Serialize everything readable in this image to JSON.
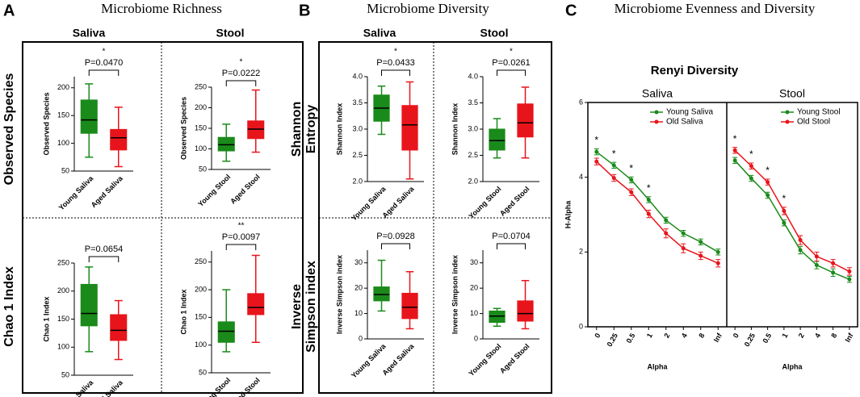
{
  "figure": {
    "panels": [
      {
        "letter": "A",
        "title": "Microbiome Richness",
        "columns": [
          "Saliva",
          "Stool"
        ],
        "rows": [
          [
            "Observed Species"
          ],
          [
            "Chao 1 Index"
          ]
        ]
      },
      {
        "letter": "B",
        "title": "Microbiome Diversity",
        "columns": [
          "Saliva",
          "Stool"
        ],
        "rows": [
          [
            "Shannon",
            "Entropy"
          ],
          [
            "Inverse",
            "Simpson index"
          ]
        ]
      },
      {
        "letter": "C",
        "title": "Microbiome Evenness and Diversity",
        "subtitle": "Renyi Diversity"
      }
    ]
  },
  "chart_data": [
    {
      "type": "box",
      "ylabel": "Observed Species",
      "categories": [
        "Young Saliva",
        "Aged Saliva"
      ],
      "ylim": [
        50,
        220
      ],
      "yticks": [
        50,
        100,
        150,
        200
      ],
      "p_label": "P=0.0470",
      "star": "*",
      "boxes": [
        {
          "color": "#1a8a1a",
          "min": 75,
          "q1": 118,
          "median": 142,
          "q3": 178,
          "max": 207
        },
        {
          "color": "#e8141b",
          "min": 58,
          "q1": 88,
          "median": 110,
          "q3": 125,
          "max": 165
        }
      ]
    },
    {
      "type": "box",
      "ylabel": "Observed Species",
      "categories": [
        "Young Stool",
        "Aged Stool"
      ],
      "ylim": [
        50,
        250
      ],
      "yticks": [
        50,
        100,
        150,
        200,
        250
      ],
      "p_label": "P=0.0222",
      "star": "*",
      "boxes": [
        {
          "color": "#1a8a1a",
          "min": 70,
          "q1": 95,
          "median": 110,
          "q3": 128,
          "max": 160
        },
        {
          "color": "#e8141b",
          "min": 92,
          "q1": 125,
          "median": 148,
          "q3": 168,
          "max": 243
        }
      ]
    },
    {
      "type": "box",
      "ylabel": "Chao 1 Index",
      "categories": [
        "Young Saliva",
        "Aged Saliva"
      ],
      "ylim": [
        50,
        250
      ],
      "yticks": [
        50,
        100,
        150,
        200,
        250
      ],
      "p_label": "P=0.0654",
      "boxes": [
        {
          "color": "#1a8a1a",
          "min": 92,
          "q1": 138,
          "median": 160,
          "q3": 212,
          "max": 243
        },
        {
          "color": "#e8141b",
          "min": 78,
          "q1": 112,
          "median": 130,
          "q3": 158,
          "max": 183
        }
      ]
    },
    {
      "type": "box",
      "ylabel": "Chao 1 Index",
      "categories": [
        "Young Stool",
        "Aged Stool"
      ],
      "ylim": [
        50,
        270
      ],
      "yticks": [
        50,
        100,
        150,
        200,
        250
      ],
      "p_label": "P=0.0097",
      "star": "**",
      "boxes": [
        {
          "color": "#1a8a1a",
          "min": 88,
          "q1": 105,
          "median": 125,
          "q3": 142,
          "max": 200
        },
        {
          "color": "#e8141b",
          "min": 105,
          "q1": 155,
          "median": 168,
          "q3": 193,
          "max": 262
        }
      ]
    },
    {
      "type": "box",
      "ylabel": "Shannon Index",
      "categories": [
        "Young Saliva",
        "Aged Saliva"
      ],
      "ylim": [
        2,
        4
      ],
      "yticks": [
        {
          "value": 2,
          "label": "2.0"
        },
        2.5,
        {
          "value": 3,
          "label": "3.0"
        },
        3.5,
        {
          "value": 4,
          "label": "4.0"
        }
      ],
      "p_label": "P=0.0433",
      "star": "*",
      "boxes": [
        {
          "color": "#1a8a1a",
          "min": 2.9,
          "q1": 3.15,
          "median": 3.4,
          "q3": 3.65,
          "max": 3.82
        },
        {
          "color": "#e8141b",
          "min": 2.05,
          "q1": 2.6,
          "median": 3.08,
          "q3": 3.45,
          "max": 3.9
        }
      ]
    },
    {
      "type": "box",
      "ylabel": "Shannon Index",
      "categories": [
        "Young Stool",
        "Aged Stool"
      ],
      "ylim": [
        2,
        4
      ],
      "yticks": [
        {
          "value": 2,
          "label": "2.0"
        },
        2.5,
        {
          "value": 3,
          "label": "3.0"
        },
        3.5,
        {
          "value": 4,
          "label": "4.0"
        }
      ],
      "p_label": "P=0.0261",
      "star": "*",
      "boxes": [
        {
          "color": "#1a8a1a",
          "min": 2.45,
          "q1": 2.6,
          "median": 2.78,
          "q3": 3.0,
          "max": 3.2
        },
        {
          "color": "#e8141b",
          "min": 2.45,
          "q1": 2.85,
          "median": 3.12,
          "q3": 3.48,
          "max": 3.8
        }
      ]
    },
    {
      "type": "box",
      "ylabel": "Inverse Simpson index",
      "categories": [
        "Young Saliva",
        "Aged Saliva"
      ],
      "ylim": [
        0,
        35
      ],
      "yticks": [
        0,
        10,
        20,
        30
      ],
      "p_label": "P=0.0928",
      "boxes": [
        {
          "color": "#1a8a1a",
          "min": 11,
          "q1": 15,
          "median": 17.5,
          "q3": 20.5,
          "max": 31
        },
        {
          "color": "#e8141b",
          "min": 4,
          "q1": 8,
          "median": 12.5,
          "q3": 18,
          "max": 26.5
        }
      ]
    },
    {
      "type": "box",
      "ylabel": "Inverse Simpson index",
      "categories": [
        "Young Stool",
        "Aged Stool"
      ],
      "ylim": [
        0,
        35
      ],
      "yticks": [
        0,
        10,
        20,
        30
      ],
      "p_label": "P=0.0704",
      "boxes": [
        {
          "color": "#1a8a1a",
          "min": 5,
          "q1": 6.5,
          "median": 9,
          "q3": 11,
          "max": 12
        },
        {
          "color": "#e8141b",
          "min": 4,
          "q1": 7,
          "median": 10,
          "q3": 15,
          "max": 23
        }
      ]
    },
    {
      "type": "line",
      "title": "Saliva",
      "xlabel": "Alpha",
      "ylabel": "H-Alpha",
      "categories": [
        "0",
        "0.25",
        "0.5",
        "1",
        "2",
        "4",
        "8",
        "Inf"
      ],
      "ylim": [
        0,
        6
      ],
      "yticks": [
        0,
        2,
        4,
        6
      ],
      "legend": "upper right",
      "stars": [
        "*",
        "*",
        "*",
        "*",
        null,
        null,
        null,
        null
      ],
      "series": [
        {
          "name": "Young Saliva",
          "color": "#1a8a1a",
          "values": [
            4.68,
            4.32,
            3.93,
            3.4,
            2.85,
            2.5,
            2.27,
            2.0
          ],
          "errors": [
            0.08,
            0.08,
            0.08,
            0.08,
            0.08,
            0.08,
            0.08,
            0.08
          ]
        },
        {
          "name": "Old Saliva",
          "color": "#e8141b",
          "values": [
            4.42,
            3.98,
            3.6,
            3.02,
            2.5,
            2.1,
            1.9,
            1.7
          ],
          "errors": [
            0.09,
            0.09,
            0.09,
            0.1,
            0.12,
            0.12,
            0.1,
            0.1
          ]
        }
      ]
    },
    {
      "type": "line",
      "title": "Stool",
      "xlabel": "Alpha",
      "categories": [
        "0",
        "0.25",
        "0.5",
        "1",
        "2",
        "4",
        "8",
        "Inf"
      ],
      "ylim": [
        0,
        6
      ],
      "legend": "upper right",
      "stars": [
        "*",
        "*",
        "*",
        "*",
        null,
        null,
        null,
        null
      ],
      "series": [
        {
          "name": "Young Stool",
          "color": "#1a8a1a",
          "values": [
            4.45,
            3.97,
            3.52,
            2.78,
            2.05,
            1.65,
            1.45,
            1.27
          ],
          "errors": [
            0.08,
            0.08,
            0.08,
            0.08,
            0.1,
            0.1,
            0.1,
            0.08
          ]
        },
        {
          "name": "Old Stool",
          "color": "#e8141b",
          "values": [
            4.72,
            4.3,
            3.87,
            3.1,
            2.32,
            1.88,
            1.7,
            1.48
          ],
          "errors": [
            0.08,
            0.08,
            0.08,
            0.1,
            0.12,
            0.12,
            0.1,
            0.1
          ]
        }
      ]
    }
  ]
}
